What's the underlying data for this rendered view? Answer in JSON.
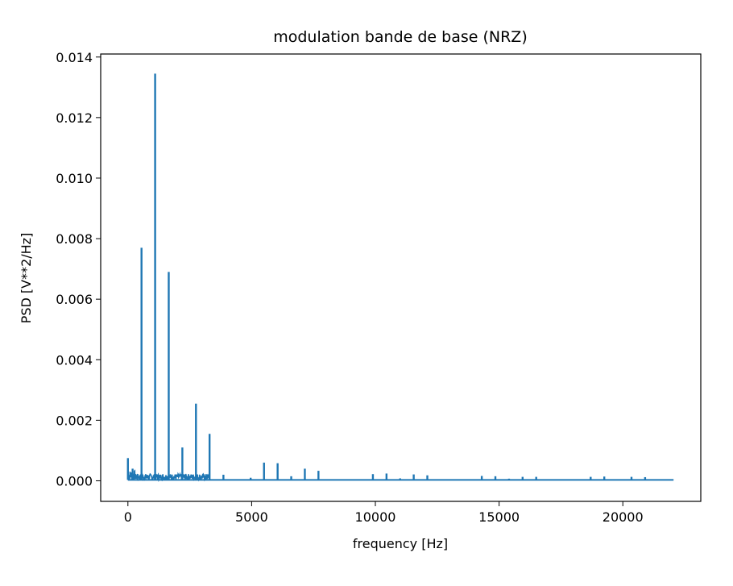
{
  "chart_data": {
    "type": "line",
    "title": "modulation bande de base (NRZ)",
    "xlabel": "frequency [Hz]",
    "ylabel": "PSD [V**2/Hz]",
    "xlim": [
      -1100,
      23150
    ],
    "ylim": [
      -0.00068,
      0.0141
    ],
    "x_ticks": [
      0,
      5000,
      10000,
      15000,
      20000
    ],
    "x_tick_labels": [
      "0",
      "5000",
      "10000",
      "15000",
      "20000"
    ],
    "y_ticks": [
      0.0,
      0.002,
      0.004,
      0.006,
      0.008,
      0.01,
      0.012,
      0.014
    ],
    "y_tick_labels": [
      "0.000",
      "0.002",
      "0.004",
      "0.006",
      "0.008",
      "0.010",
      "0.012",
      "0.014"
    ],
    "grid": false,
    "line_color": "#1f77b4",
    "baseline": 3e-05,
    "noise_floor": {
      "x_start": 0,
      "x_end": 3300,
      "max": 0.00022
    },
    "series": [
      {
        "x": [
          0,
          190,
          550,
          1100,
          1650,
          2200,
          2750,
          3300,
          3860,
          4960,
          5500,
          6050,
          6600,
          7150,
          7700,
          8250,
          9350,
          9900,
          10450,
          11000,
          11550,
          12100,
          12650,
          14300,
          14850,
          15400,
          15950,
          16500,
          18150,
          18700,
          19250,
          19800,
          20350,
          20900,
          21450
        ],
        "values": [
          0.00075,
          0.0004,
          0.0077,
          0.01345,
          0.0069,
          0.0011,
          0.00255,
          0.00155,
          0.0002,
          0.0001,
          0.0006,
          0.00058,
          0.00015,
          0.0004,
          0.00033,
          5e-05,
          5e-05,
          0.00022,
          0.00024,
          8e-05,
          0.00021,
          0.00018,
          5e-05,
          0.00016,
          0.00015,
          7e-05,
          0.00013,
          0.00013,
          5e-05,
          0.00013,
          0.00014,
          5e-05,
          0.00013,
          0.00012,
          4e-05
        ]
      }
    ],
    "x_end": 22050
  }
}
